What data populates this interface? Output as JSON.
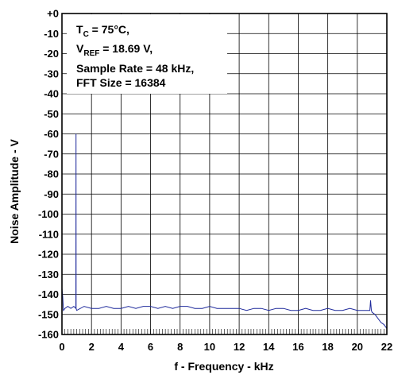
{
  "chart_data": {
    "type": "line",
    "xlabel": "f - Frequency - kHz",
    "ylabel": "Noise Amplitude - V",
    "xlim": [
      0,
      22
    ],
    "ylim": [
      -160,
      0
    ],
    "xticks": [
      "0",
      "2",
      "4",
      "6",
      "8",
      "10",
      "12",
      "14",
      "16",
      "18",
      "20",
      "22"
    ],
    "yticks": [
      "+0",
      "-10",
      "-20",
      "-30",
      "-40",
      "-50",
      "-60",
      "-70",
      "-80",
      "-90",
      "-100",
      "-110",
      "-120",
      "-130",
      "-140",
      "-150",
      "-160"
    ],
    "grid": true,
    "series_color": "#1f2a9c",
    "annotation": {
      "line1_main": "T",
      "line1_sub": "C",
      "line1_rest": " = 75°C,",
      "line2_main": "V",
      "line2_sub": "REF",
      "line2_rest": " = 18.69 V,",
      "line3": "Sample Rate = 48 kHz,",
      "line4": "FFT Size = 16384"
    },
    "series": [
      {
        "x": [
          0,
          0.05,
          0.1,
          0.2,
          0.4,
          0.6,
          0.8,
          0.94,
          0.95,
          0.96,
          1.0,
          1.5,
          2,
          2.5,
          3,
          3.5,
          4,
          4.5,
          5,
          5.5,
          6,
          6.5,
          7,
          7.5,
          8,
          8.5,
          9,
          9.5,
          10,
          10.5,
          11,
          11.5,
          12,
          12.5,
          13,
          13.5,
          14,
          14.5,
          15,
          15.5,
          16,
          16.5,
          17,
          17.5,
          18,
          18.5,
          19,
          19.5,
          20,
          20.5,
          20.85,
          20.9,
          20.95,
          21.0,
          21.2,
          21.4,
          21.6,
          21.8,
          22
        ],
        "y": [
          -137,
          -141,
          -148,
          -147,
          -146,
          -147,
          -146,
          -147,
          -60,
          -147,
          -148,
          -146,
          -147,
          -147,
          -146,
          -147,
          -147,
          -146,
          -147,
          -146,
          -146,
          -147,
          -146,
          -147,
          -146,
          -146,
          -147,
          -147,
          -146,
          -147,
          -147,
          -147,
          -147,
          -148,
          -147,
          -147,
          -148,
          -147,
          -147,
          -148,
          -148,
          -147,
          -148,
          -148,
          -147,
          -148,
          -148,
          -147,
          -148,
          -148,
          -148,
          -143,
          -148,
          -149,
          -150,
          -152,
          -154,
          -155,
          -157
        ]
      }
    ]
  }
}
